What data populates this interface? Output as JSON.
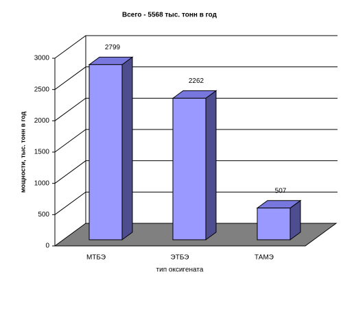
{
  "chart_data": {
    "type": "bar3d",
    "title": "Всего - 5568 тыс. тонн в год",
    "categories": [
      "МТБЭ",
      "ЭТБЭ",
      "ТАМЭ"
    ],
    "values": [
      2799,
      2262,
      507
    ],
    "color": "#9999ff",
    "xlabel": "тип оксигената",
    "ylabel": "мощности, тыс. тонн в год",
    "ylim": [
      0,
      3000
    ],
    "yticks": [
      0,
      500,
      1000,
      1500,
      2000,
      2500,
      3000
    ],
    "grid": true
  }
}
